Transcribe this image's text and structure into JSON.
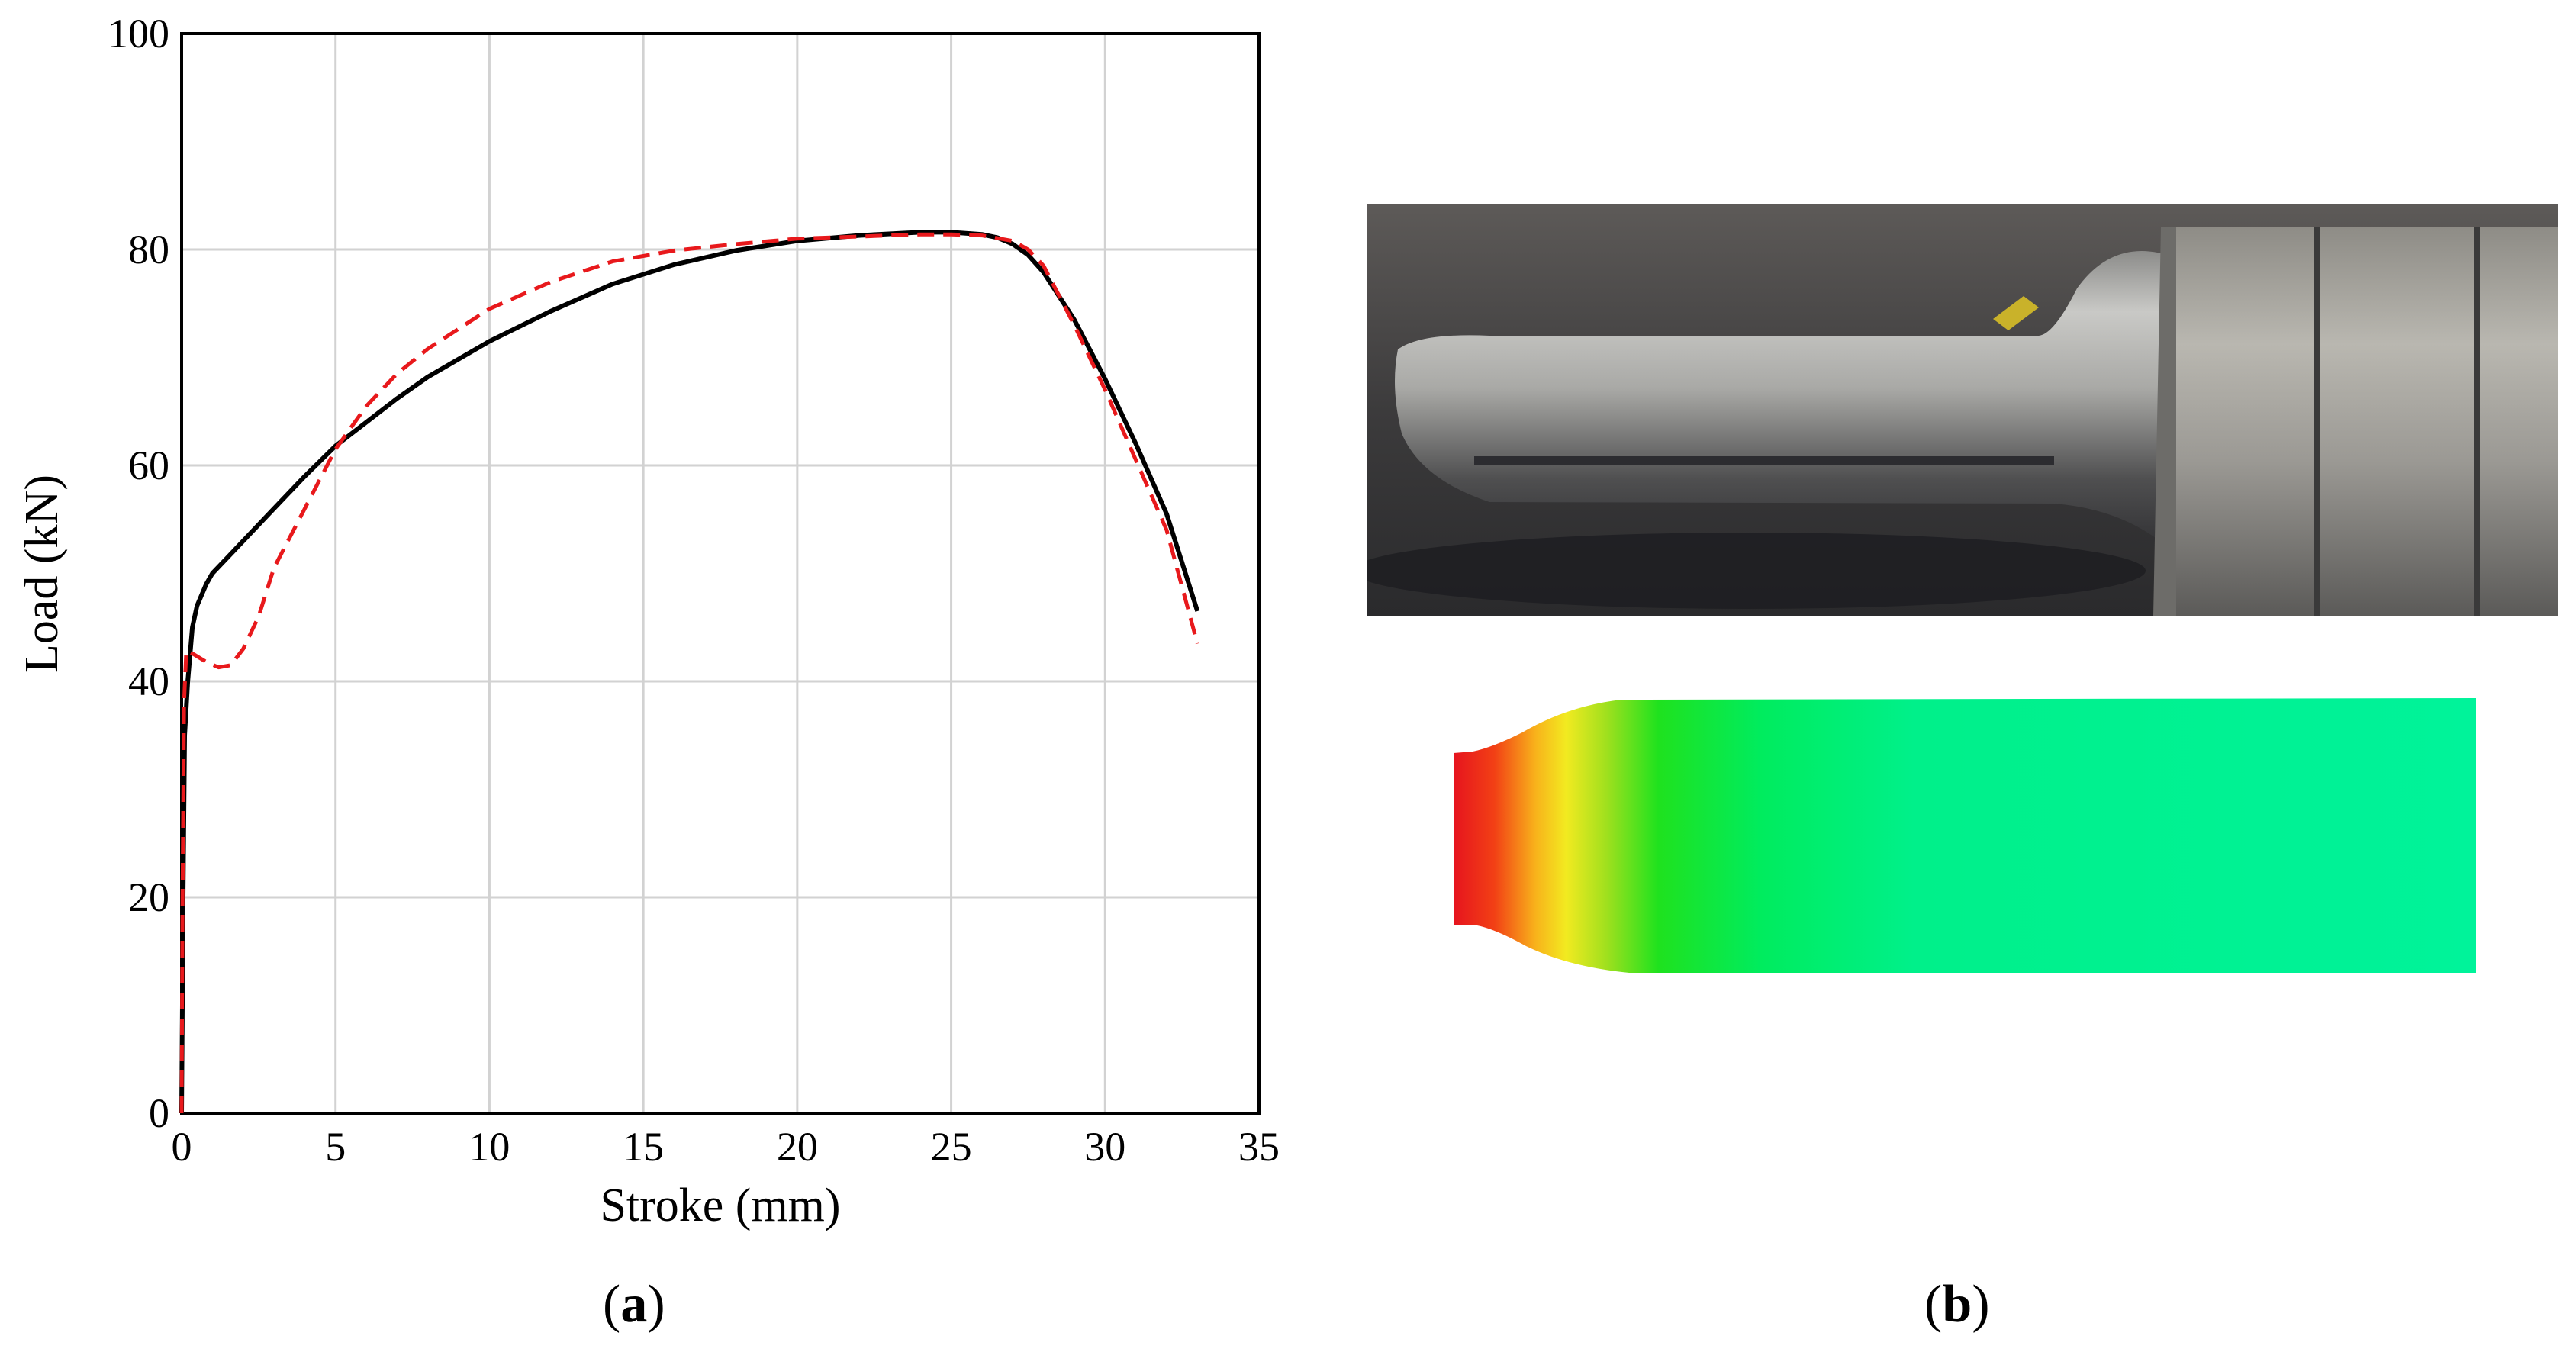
{
  "chart_data": {
    "type": "line",
    "xlabel": "Stroke (mm)",
    "ylabel": "Load (kN)",
    "xlim": [
      0,
      35
    ],
    "ylim": [
      0,
      100
    ],
    "xticks": [
      0,
      5,
      10,
      15,
      20,
      25,
      30,
      35
    ],
    "yticks": [
      0,
      20,
      40,
      60,
      80,
      100
    ],
    "grid": true,
    "series": [
      {
        "style": "solid",
        "color": "#000000",
        "x": [
          0,
          0.05,
          0.1,
          0.2,
          0.35,
          0.5,
          0.8,
          1.0,
          1.5,
          2,
          3,
          4,
          5,
          6,
          7,
          8,
          10,
          12,
          14,
          16,
          18,
          20,
          22,
          24,
          25,
          26,
          26.5,
          27,
          27.5,
          28,
          29,
          30,
          31,
          32,
          33
        ],
        "y": [
          0,
          20,
          35,
          40,
          45,
          47,
          49,
          50,
          51.5,
          53,
          56,
          59,
          61.8,
          64,
          66.2,
          68.2,
          71.5,
          74.3,
          76.8,
          78.6,
          79.9,
          80.8,
          81.3,
          81.6,
          81.6,
          81.4,
          81.1,
          80.5,
          79.5,
          77.9,
          73.5,
          68,
          62,
          55.5,
          46.5
        ]
      },
      {
        "style": "dashed",
        "color": "#e8191c",
        "x": [
          0,
          0.03,
          0.08,
          0.15,
          0.4,
          0.8,
          1.2,
          1.6,
          2.0,
          2.5,
          3,
          4,
          5,
          6,
          7,
          8,
          10,
          12,
          14,
          16,
          18,
          20,
          22,
          24,
          25,
          26,
          27,
          27.5,
          28,
          29,
          30,
          31,
          32,
          33
        ],
        "y": [
          0,
          20,
          38,
          42.8,
          42.5,
          41.8,
          41.3,
          41.5,
          43,
          46,
          50.5,
          56,
          61.5,
          65.5,
          68.5,
          70.8,
          74.5,
          77,
          78.9,
          79.9,
          80.5,
          81,
          81.2,
          81.4,
          81.4,
          81.3,
          80.8,
          80,
          78.5,
          73,
          67,
          60.5,
          54,
          43.5
        ]
      }
    ]
  },
  "captions": {
    "a": {
      "open": "(",
      "letter": "a",
      "close": ")"
    },
    "b": {
      "open": "(",
      "letter": "b",
      "close": ")"
    }
  }
}
